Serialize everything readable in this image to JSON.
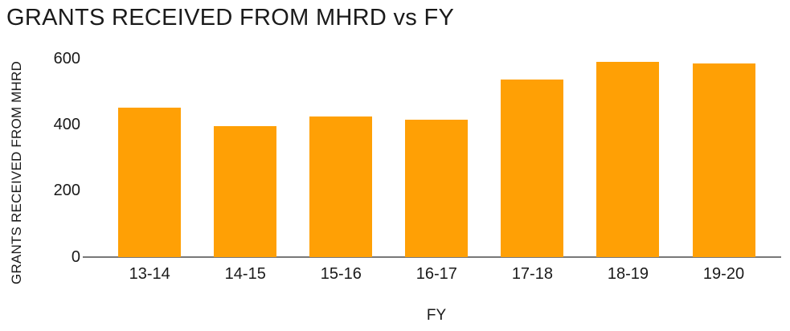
{
  "chart_data": {
    "type": "bar",
    "title": "GRANTS RECEIVED FROM MHRD vs FY",
    "xlabel": "FY",
    "ylabel": "GRANTS RECEIVED FROM MHRD",
    "categories": [
      "13-14",
      "14-15",
      "15-16",
      "16-17",
      "17-18",
      "18-19",
      "19-20"
    ],
    "values": [
      450,
      395,
      425,
      415,
      535,
      590,
      585
    ],
    "ylim": [
      0,
      600
    ],
    "yticks": [
      0,
      200,
      400,
      600
    ],
    "grid": "off",
    "legend": "none",
    "bar_color": "#FFA005",
    "axis_line_color": "#787878",
    "text_color": "#1A1A1A"
  }
}
